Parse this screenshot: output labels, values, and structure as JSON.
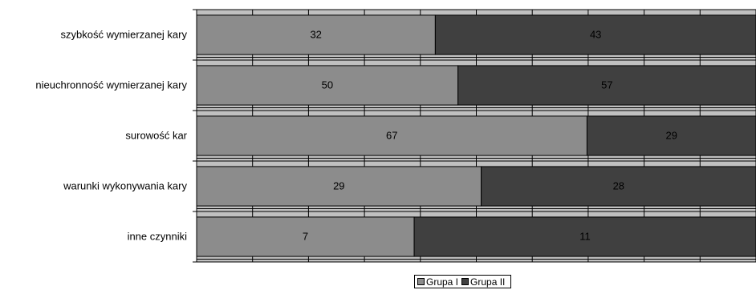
{
  "chart_data": {
    "type": "bar",
    "orientation": "horizontal",
    "stacked": true,
    "percent_stacked": true,
    "categories": [
      "szybkość wymierzanej kary",
      "nieuchronność wymierzanej kary",
      "surowość kar",
      "warunki wykonywania kary",
      "inne czynniki"
    ],
    "series": [
      {
        "name": "Grupa I",
        "values": [
          32,
          50,
          67,
          29,
          7
        ],
        "color": "#8c8c8c"
      },
      {
        "name": "Grupa II",
        "values": [
          43,
          57,
          29,
          28,
          11
        ],
        "color": "#404040"
      }
    ],
    "grid": true,
    "gridline_count": 10,
    "legend_position": "bottom",
    "background_color": "#c0c0c0"
  }
}
